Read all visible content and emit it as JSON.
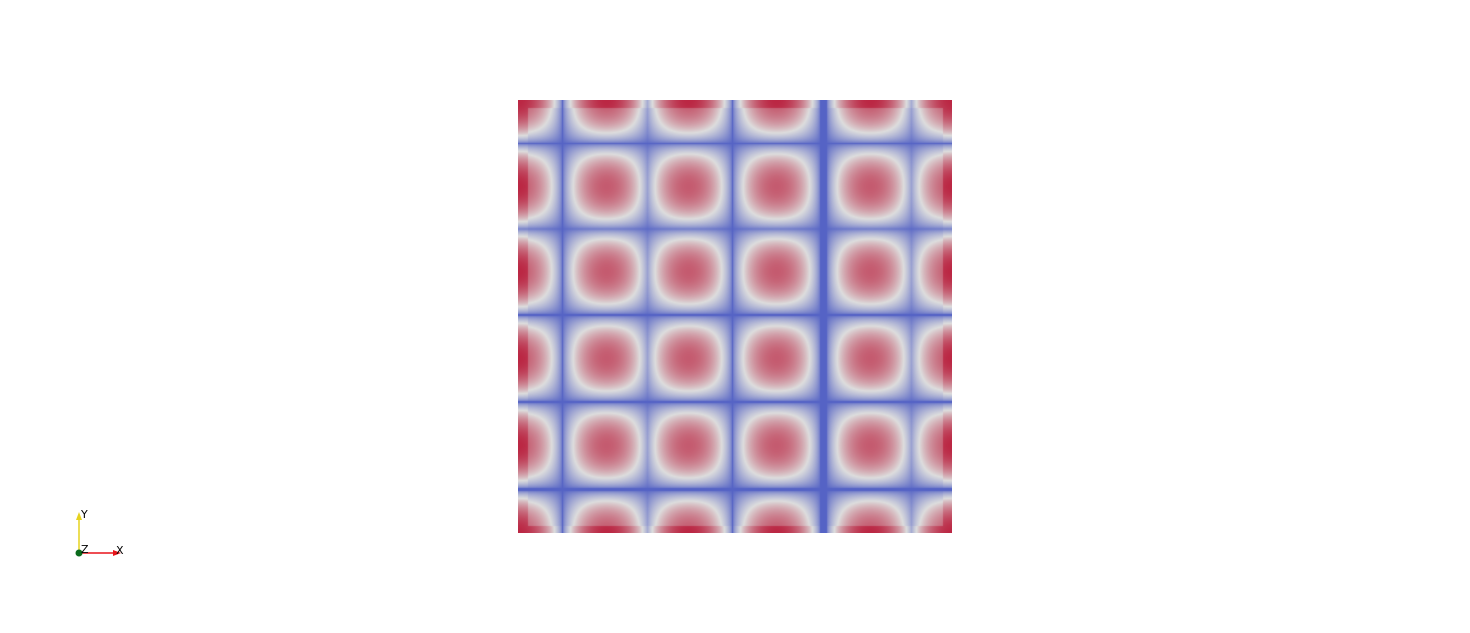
{
  "viewport": {
    "background": "#ffffff"
  },
  "render": {
    "colormap": "Cool to Warm",
    "colormap_stops": [
      "#3b4cc0",
      "#dddddd",
      "#b40426"
    ]
  },
  "orientation_axes": {
    "x_label": "X",
    "y_label": "Y",
    "z_label": "Z",
    "x_color": "#e8141a",
    "y_color": "#e6d21e",
    "z_color": "#0a6b1c"
  }
}
